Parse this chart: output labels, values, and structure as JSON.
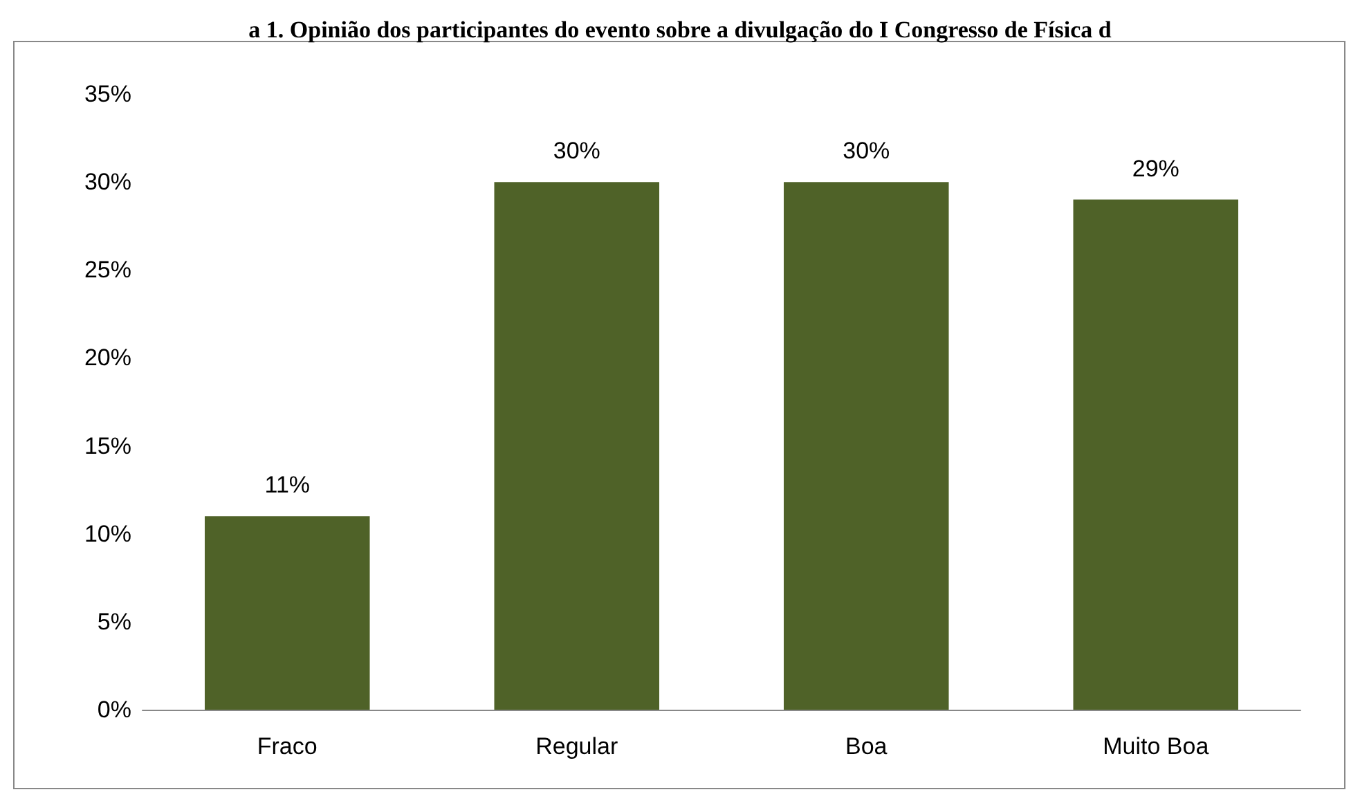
{
  "chart_data": {
    "type": "bar",
    "title": "a 1. Opinião dos participantes do evento sobre a divulgação do I Congresso de Física d",
    "categories": [
      "Fraco",
      "Regular",
      "Boa",
      "Muito Boa"
    ],
    "values": [
      11,
      30,
      30,
      29
    ],
    "value_labels": [
      "11%",
      "30%",
      "30%",
      "29%"
    ],
    "color": "#4f6228",
    "ylim": [
      0,
      35
    ],
    "yticks": [
      {
        "value": 0,
        "label": "0%"
      },
      {
        "value": 5,
        "label": "5%"
      },
      {
        "value": 10,
        "label": "10%"
      },
      {
        "value": 15,
        "label": "15%"
      },
      {
        "value": 20,
        "label": "20%"
      },
      {
        "value": 25,
        "label": "25%"
      },
      {
        "value": 30,
        "label": "30%"
      },
      {
        "value": 35,
        "label": "35%"
      }
    ],
    "grid": false
  }
}
